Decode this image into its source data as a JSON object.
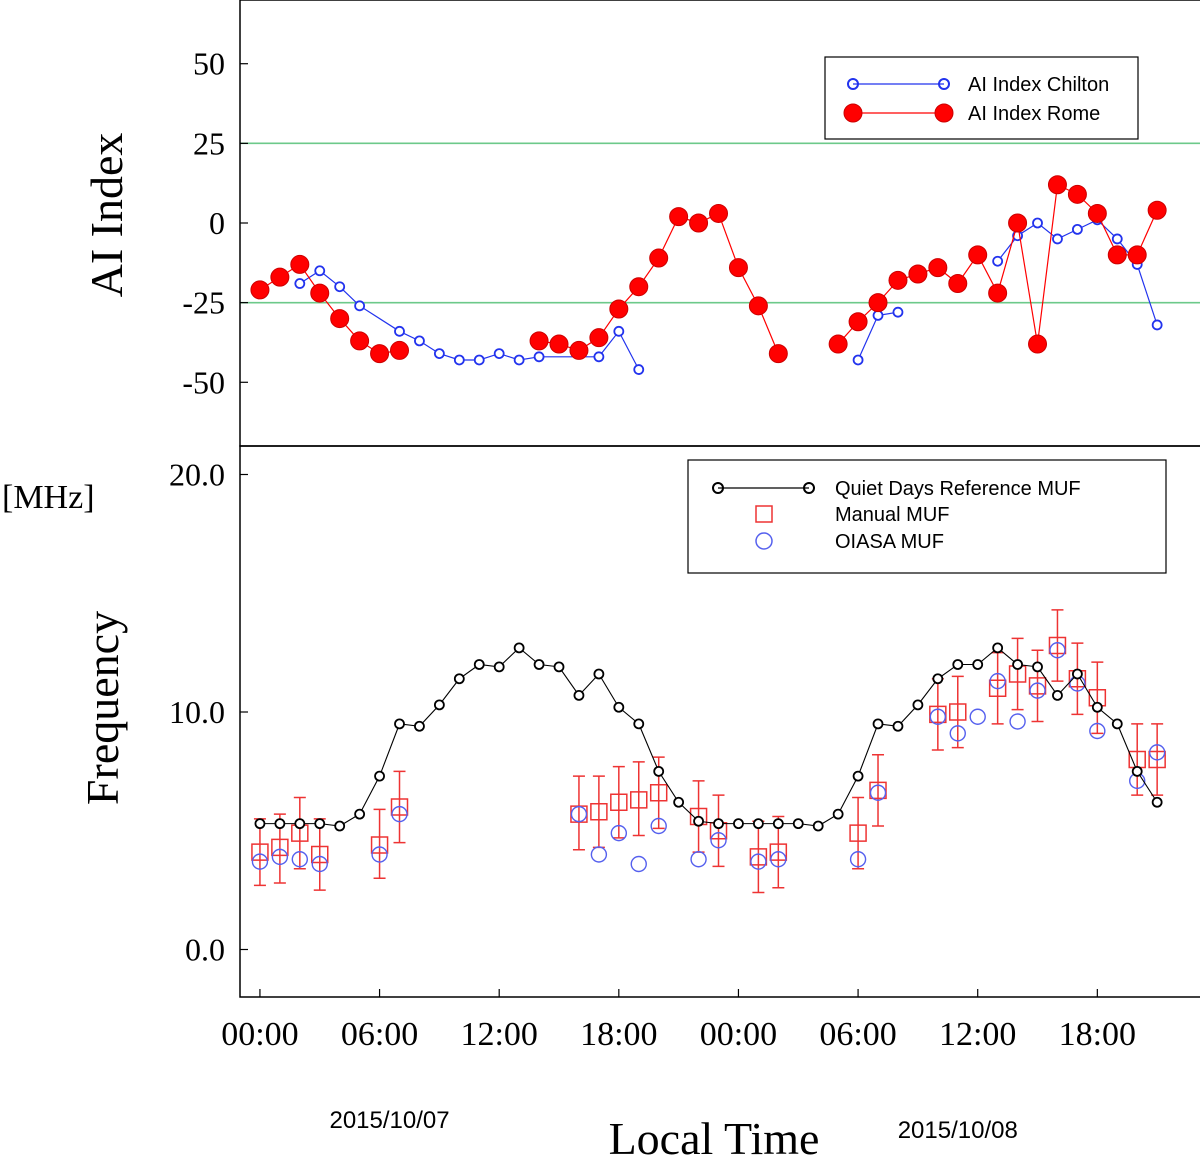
{
  "chart_data": [
    {
      "type": "line",
      "ylabel": "AI Index",
      "ylim": [
        -70,
        70
      ],
      "yticks": [
        {
          "value": 50,
          "label": "50"
        },
        {
          "value": 25,
          "label": "25"
        },
        {
          "value": 0,
          "label": "0"
        },
        {
          "value": -25,
          "label": "-25"
        },
        {
          "value": -50,
          "label": "-50"
        }
      ],
      "xlim": [
        -1,
        47.4
      ],
      "grid": false,
      "reference_lines": [
        {
          "y": 25,
          "color": "#6cc98a"
        },
        {
          "y": -25,
          "color": "#6cc98a"
        }
      ],
      "legend_position": "top-right",
      "series": [
        {
          "name": "AI Index Chilton",
          "color": "#2233ee",
          "marker": "open-circle",
          "segments": [
            [
              [
                2,
                -19
              ],
              [
                3,
                -15
              ],
              [
                4,
                -20
              ],
              [
                5,
                -26
              ],
              [
                7,
                -34
              ],
              [
                8,
                -37
              ],
              [
                9,
                -41
              ],
              [
                10,
                -43
              ],
              [
                11,
                -43
              ],
              [
                12,
                -41
              ],
              [
                13,
                -43
              ],
              [
                14,
                -42
              ],
              [
                17,
                -42
              ],
              [
                18,
                -34
              ],
              [
                19,
                -46
              ]
            ],
            [
              [
                30,
                -43
              ],
              [
                31,
                -29
              ],
              [
                32,
                -28
              ]
            ],
            [
              [
                37,
                -12
              ],
              [
                38,
                -4
              ],
              [
                39,
                0
              ],
              [
                40,
                -5
              ],
              [
                41,
                -2
              ],
              [
                42,
                1
              ],
              [
                43,
                -5
              ],
              [
                44,
                -13
              ],
              [
                45,
                -32
              ]
            ]
          ]
        },
        {
          "name": "AI Index Rome",
          "color": "#ff0000",
          "marker": "filled-circle",
          "segments": [
            [
              [
                0,
                -21
              ],
              [
                1,
                -17
              ],
              [
                2,
                -13
              ],
              [
                3,
                -22
              ],
              [
                4,
                -30
              ],
              [
                5,
                -37
              ],
              [
                6,
                -41
              ],
              [
                7,
                -40
              ]
            ],
            [
              [
                14,
                -37
              ],
              [
                15,
                -38
              ],
              [
                16,
                -40
              ],
              [
                17,
                -36
              ],
              [
                18,
                -27
              ],
              [
                19,
                -20
              ],
              [
                20,
                -11
              ],
              [
                21,
                2
              ],
              [
                22,
                0
              ],
              [
                23,
                3
              ],
              [
                24,
                -14
              ],
              [
                25,
                -26
              ],
              [
                26,
                -41
              ]
            ],
            [
              [
                29,
                -38
              ],
              [
                30,
                -31
              ],
              [
                31,
                -25
              ],
              [
                32,
                -18
              ],
              [
                33,
                -16
              ],
              [
                34,
                -14
              ],
              [
                35,
                -19
              ],
              [
                36,
                -10
              ],
              [
                37,
                -22
              ],
              [
                38,
                0
              ],
              [
                39,
                -38
              ],
              [
                40,
                12
              ],
              [
                41,
                9
              ],
              [
                42,
                3
              ],
              [
                43,
                -10
              ],
              [
                44,
                -10
              ],
              [
                45,
                4
              ]
            ]
          ]
        }
      ]
    },
    {
      "type": "line",
      "ylabel": "Frequency",
      "unit_label": "[MHz]",
      "ylim": [
        -2,
        21.2
      ],
      "yticks": [
        {
          "value": 20,
          "label": "20.0"
        },
        {
          "value": 10,
          "label": "10.0"
        },
        {
          "value": 0,
          "label": "0.0"
        }
      ],
      "xlim": [
        -1,
        47.4
      ],
      "xticks": [
        {
          "value": 0,
          "label": "00:00"
        },
        {
          "value": 6,
          "label": "06:00"
        },
        {
          "value": 12,
          "label": "12:00"
        },
        {
          "value": 18,
          "label": "18:00"
        },
        {
          "value": 24,
          "label": "00:00"
        },
        {
          "value": 30,
          "label": "06:00"
        },
        {
          "value": 36,
          "label": "12:00"
        },
        {
          "value": 42,
          "label": "18:00"
        }
      ],
      "xlabel": "Local Time",
      "dates": [
        {
          "label": "2015/10/07",
          "at": 6.5
        },
        {
          "label": "2015/10/08",
          "at": 35
        }
      ],
      "grid": false,
      "legend_position": "top-right",
      "series": [
        {
          "name": "Quiet Days Reference MUF",
          "color": "#000000",
          "marker": "open-circle",
          "x": [
            0,
            1,
            2,
            3,
            4,
            5,
            6,
            7,
            8,
            9,
            10,
            11,
            12,
            13,
            14,
            15,
            16,
            17,
            18,
            19,
            20,
            21,
            22,
            23,
            24,
            25,
            26,
            27,
            28,
            29,
            30,
            31,
            32,
            33,
            34,
            35,
            36,
            37,
            38,
            39,
            40,
            41,
            42,
            43,
            44,
            45
          ],
          "y": [
            5.3,
            5.3,
            5.3,
            5.3,
            5.2,
            5.7,
            7.3,
            9.5,
            9.4,
            10.3,
            11.4,
            12.0,
            11.9,
            12.7,
            12.0,
            11.9,
            10.7,
            11.6,
            10.2,
            9.5,
            7.5,
            6.2,
            5.4,
            5.3,
            5.3,
            5.3,
            5.3,
            5.3,
            5.2,
            5.7,
            7.3,
            9.5,
            9.4,
            10.3,
            11.4,
            12.0,
            12.0,
            12.7,
            12.0,
            11.9,
            10.7,
            11.6,
            10.2,
            9.5,
            7.5,
            6.2
          ]
        },
        {
          "name": "Manual MUF",
          "color": "#ee3333",
          "marker": "open-square",
          "points": [
            {
              "x": 0,
              "y": 4.1,
              "lo": 2.7,
              "hi": 5.5
            },
            {
              "x": 1,
              "y": 4.3,
              "lo": 2.8,
              "hi": 5.7
            },
            {
              "x": 2,
              "y": 4.9,
              "lo": 3.4,
              "hi": 6.4
            },
            {
              "x": 3,
              "y": 4.0,
              "lo": 2.5,
              "hi": 5.5
            },
            {
              "x": 6,
              "y": 4.4,
              "lo": 3.0,
              "hi": 5.9
            },
            {
              "x": 7,
              "y": 6.0,
              "lo": 4.5,
              "hi": 7.5
            },
            {
              "x": 16,
              "y": 5.7,
              "lo": 4.2,
              "hi": 7.3
            },
            {
              "x": 17,
              "y": 5.8,
              "lo": 4.3,
              "hi": 7.3
            },
            {
              "x": 18,
              "y": 6.2,
              "lo": 4.7,
              "hi": 7.7
            },
            {
              "x": 19,
              "y": 6.3,
              "lo": 4.8,
              "hi": 7.9
            },
            {
              "x": 20,
              "y": 6.6,
              "lo": 5.1,
              "hi": 8.1
            },
            {
              "x": 22,
              "y": 5.6,
              "lo": 4.1,
              "hi": 7.1
            },
            {
              "x": 23,
              "y": 5.0,
              "lo": 3.5,
              "hi": 6.5
            },
            {
              "x": 25,
              "y": 3.9,
              "lo": 2.4,
              "hi": 5.4
            },
            {
              "x": 26,
              "y": 4.1,
              "lo": 2.6,
              "hi": 5.6
            },
            {
              "x": 30,
              "y": 4.9,
              "lo": 3.4,
              "hi": 6.4
            },
            {
              "x": 31,
              "y": 6.7,
              "lo": 5.2,
              "hi": 8.2
            },
            {
              "x": 34,
              "y": 9.9,
              "lo": 8.4,
              "hi": 11.4
            },
            {
              "x": 35,
              "y": 10.0,
              "lo": 8.5,
              "hi": 11.5
            },
            {
              "x": 37,
              "y": 11.0,
              "lo": 9.5,
              "hi": 12.5
            },
            {
              "x": 38,
              "y": 11.6,
              "lo": 10.1,
              "hi": 13.1
            },
            {
              "x": 39,
              "y": 11.1,
              "lo": 9.6,
              "hi": 12.6
            },
            {
              "x": 40,
              "y": 12.8,
              "lo": 11.3,
              "hi": 14.3
            },
            {
              "x": 41,
              "y": 11.4,
              "lo": 9.9,
              "hi": 12.9
            },
            {
              "x": 42,
              "y": 10.6,
              "lo": 9.1,
              "hi": 12.1
            },
            {
              "x": 44,
              "y": 8.0,
              "lo": 6.5,
              "hi": 9.5
            },
            {
              "x": 45,
              "y": 8.0,
              "lo": 6.5,
              "hi": 9.5
            }
          ]
        },
        {
          "name": "OIASA MUF",
          "color": "#5560ee",
          "marker": "open-circle",
          "x": [
            0,
            1,
            2,
            3,
            6,
            7,
            16,
            17,
            18,
            19,
            20,
            22,
            23,
            25,
            26,
            30,
            31,
            34,
            35,
            36,
            37,
            38,
            39,
            40,
            41,
            42,
            44,
            45
          ],
          "y": [
            3.7,
            3.9,
            3.8,
            3.6,
            4.0,
            5.7,
            5.7,
            4.0,
            4.9,
            3.6,
            5.2,
            3.8,
            4.6,
            3.7,
            3.8,
            3.8,
            6.6,
            9.8,
            9.1,
            9.8,
            11.3,
            9.6,
            10.9,
            12.6,
            11.2,
            9.2,
            7.1,
            8.3
          ]
        }
      ]
    }
  ]
}
